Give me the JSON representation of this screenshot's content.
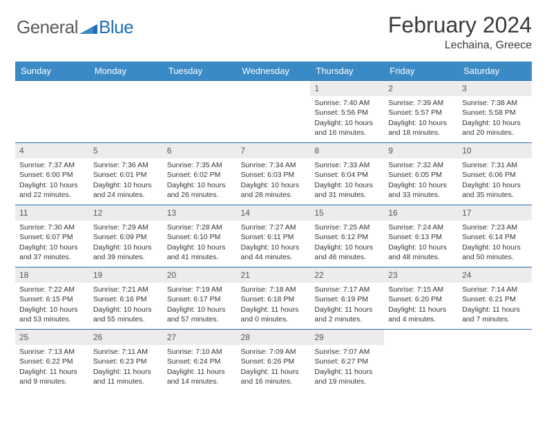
{
  "logo": {
    "part1": "General",
    "part2": "Blue"
  },
  "title": "February 2024",
  "location": "Lechaina, Greece",
  "colors": {
    "header_bg": "#3a8ac6",
    "header_text": "#ffffff",
    "row_border": "#2a6aa8",
    "daynum_bg": "#ececec",
    "body_text": "#333333",
    "logo_gray": "#5a5a5a",
    "logo_blue": "#1f6fb2"
  },
  "typography": {
    "title_fontsize": 32,
    "location_fontsize": 16,
    "header_fontsize": 13,
    "cell_fontsize": 10.5,
    "daynum_fontsize": 12
  },
  "days_of_week": [
    "Sunday",
    "Monday",
    "Tuesday",
    "Wednesday",
    "Thursday",
    "Friday",
    "Saturday"
  ],
  "weeks": [
    [
      null,
      null,
      null,
      null,
      {
        "n": "1",
        "sunrise": "Sunrise: 7:40 AM",
        "sunset": "Sunset: 5:56 PM",
        "daylight": "Daylight: 10 hours and 16 minutes."
      },
      {
        "n": "2",
        "sunrise": "Sunrise: 7:39 AM",
        "sunset": "Sunset: 5:57 PM",
        "daylight": "Daylight: 10 hours and 18 minutes."
      },
      {
        "n": "3",
        "sunrise": "Sunrise: 7:38 AM",
        "sunset": "Sunset: 5:58 PM",
        "daylight": "Daylight: 10 hours and 20 minutes."
      }
    ],
    [
      {
        "n": "4",
        "sunrise": "Sunrise: 7:37 AM",
        "sunset": "Sunset: 6:00 PM",
        "daylight": "Daylight: 10 hours and 22 minutes."
      },
      {
        "n": "5",
        "sunrise": "Sunrise: 7:36 AM",
        "sunset": "Sunset: 6:01 PM",
        "daylight": "Daylight: 10 hours and 24 minutes."
      },
      {
        "n": "6",
        "sunrise": "Sunrise: 7:35 AM",
        "sunset": "Sunset: 6:02 PM",
        "daylight": "Daylight: 10 hours and 26 minutes."
      },
      {
        "n": "7",
        "sunrise": "Sunrise: 7:34 AM",
        "sunset": "Sunset: 6:03 PM",
        "daylight": "Daylight: 10 hours and 28 minutes."
      },
      {
        "n": "8",
        "sunrise": "Sunrise: 7:33 AM",
        "sunset": "Sunset: 6:04 PM",
        "daylight": "Daylight: 10 hours and 31 minutes."
      },
      {
        "n": "9",
        "sunrise": "Sunrise: 7:32 AM",
        "sunset": "Sunset: 6:05 PM",
        "daylight": "Daylight: 10 hours and 33 minutes."
      },
      {
        "n": "10",
        "sunrise": "Sunrise: 7:31 AM",
        "sunset": "Sunset: 6:06 PM",
        "daylight": "Daylight: 10 hours and 35 minutes."
      }
    ],
    [
      {
        "n": "11",
        "sunrise": "Sunrise: 7:30 AM",
        "sunset": "Sunset: 6:07 PM",
        "daylight": "Daylight: 10 hours and 37 minutes."
      },
      {
        "n": "12",
        "sunrise": "Sunrise: 7:29 AM",
        "sunset": "Sunset: 6:09 PM",
        "daylight": "Daylight: 10 hours and 39 minutes."
      },
      {
        "n": "13",
        "sunrise": "Sunrise: 7:28 AM",
        "sunset": "Sunset: 6:10 PM",
        "daylight": "Daylight: 10 hours and 41 minutes."
      },
      {
        "n": "14",
        "sunrise": "Sunrise: 7:27 AM",
        "sunset": "Sunset: 6:11 PM",
        "daylight": "Daylight: 10 hours and 44 minutes."
      },
      {
        "n": "15",
        "sunrise": "Sunrise: 7:25 AM",
        "sunset": "Sunset: 6:12 PM",
        "daylight": "Daylight: 10 hours and 46 minutes."
      },
      {
        "n": "16",
        "sunrise": "Sunrise: 7:24 AM",
        "sunset": "Sunset: 6:13 PM",
        "daylight": "Daylight: 10 hours and 48 minutes."
      },
      {
        "n": "17",
        "sunrise": "Sunrise: 7:23 AM",
        "sunset": "Sunset: 6:14 PM",
        "daylight": "Daylight: 10 hours and 50 minutes."
      }
    ],
    [
      {
        "n": "18",
        "sunrise": "Sunrise: 7:22 AM",
        "sunset": "Sunset: 6:15 PM",
        "daylight": "Daylight: 10 hours and 53 minutes."
      },
      {
        "n": "19",
        "sunrise": "Sunrise: 7:21 AM",
        "sunset": "Sunset: 6:16 PM",
        "daylight": "Daylight: 10 hours and 55 minutes."
      },
      {
        "n": "20",
        "sunrise": "Sunrise: 7:19 AM",
        "sunset": "Sunset: 6:17 PM",
        "daylight": "Daylight: 10 hours and 57 minutes."
      },
      {
        "n": "21",
        "sunrise": "Sunrise: 7:18 AM",
        "sunset": "Sunset: 6:18 PM",
        "daylight": "Daylight: 11 hours and 0 minutes."
      },
      {
        "n": "22",
        "sunrise": "Sunrise: 7:17 AM",
        "sunset": "Sunset: 6:19 PM",
        "daylight": "Daylight: 11 hours and 2 minutes."
      },
      {
        "n": "23",
        "sunrise": "Sunrise: 7:15 AM",
        "sunset": "Sunset: 6:20 PM",
        "daylight": "Daylight: 11 hours and 4 minutes."
      },
      {
        "n": "24",
        "sunrise": "Sunrise: 7:14 AM",
        "sunset": "Sunset: 6:21 PM",
        "daylight": "Daylight: 11 hours and 7 minutes."
      }
    ],
    [
      {
        "n": "25",
        "sunrise": "Sunrise: 7:13 AM",
        "sunset": "Sunset: 6:22 PM",
        "daylight": "Daylight: 11 hours and 9 minutes."
      },
      {
        "n": "26",
        "sunrise": "Sunrise: 7:11 AM",
        "sunset": "Sunset: 6:23 PM",
        "daylight": "Daylight: 11 hours and 11 minutes."
      },
      {
        "n": "27",
        "sunrise": "Sunrise: 7:10 AM",
        "sunset": "Sunset: 6:24 PM",
        "daylight": "Daylight: 11 hours and 14 minutes."
      },
      {
        "n": "28",
        "sunrise": "Sunrise: 7:09 AM",
        "sunset": "Sunset: 6:26 PM",
        "daylight": "Daylight: 11 hours and 16 minutes."
      },
      {
        "n": "29",
        "sunrise": "Sunrise: 7:07 AM",
        "sunset": "Sunset: 6:27 PM",
        "daylight": "Daylight: 11 hours and 19 minutes."
      },
      null,
      null
    ]
  ]
}
